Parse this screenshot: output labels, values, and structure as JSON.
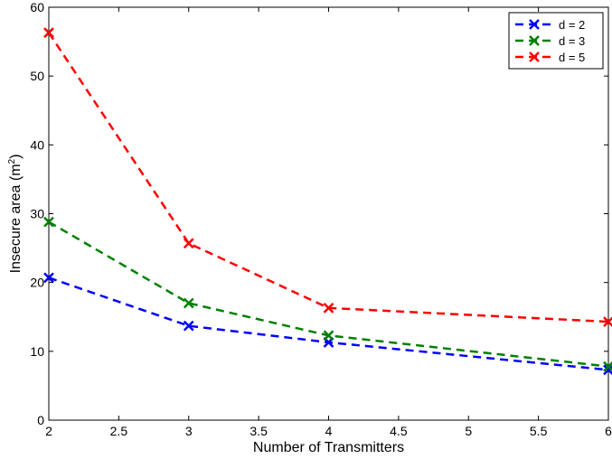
{
  "chart_data": {
    "type": "line",
    "xlabel": "Number of Transmitters",
    "ylabel": "Insecure area (m",
    "ylabel_sup": "2",
    "ylabel_close": ")",
    "xlim": [
      2,
      6
    ],
    "ylim": [
      0,
      60
    ],
    "xticks": [
      "2",
      "2.5",
      "3",
      "3.5",
      "4",
      "4.5",
      "5",
      "5.5",
      "6"
    ],
    "yticks": [
      "0",
      "10",
      "20",
      "30",
      "40",
      "50",
      "60"
    ],
    "grid": false,
    "legend_position": "top-right",
    "x": [
      2,
      3,
      4,
      6
    ],
    "series": [
      {
        "name": "d = 2",
        "color": "#0000ff",
        "values": [
          20.7,
          13.7,
          11.3,
          7.3
        ]
      },
      {
        "name": "d = 3",
        "color": "#008000",
        "values": [
          28.8,
          17.0,
          12.3,
          7.8
        ]
      },
      {
        "name": "d = 5",
        "color": "#ff0000",
        "values": [
          56.3,
          25.7,
          16.3,
          14.3
        ]
      }
    ]
  }
}
